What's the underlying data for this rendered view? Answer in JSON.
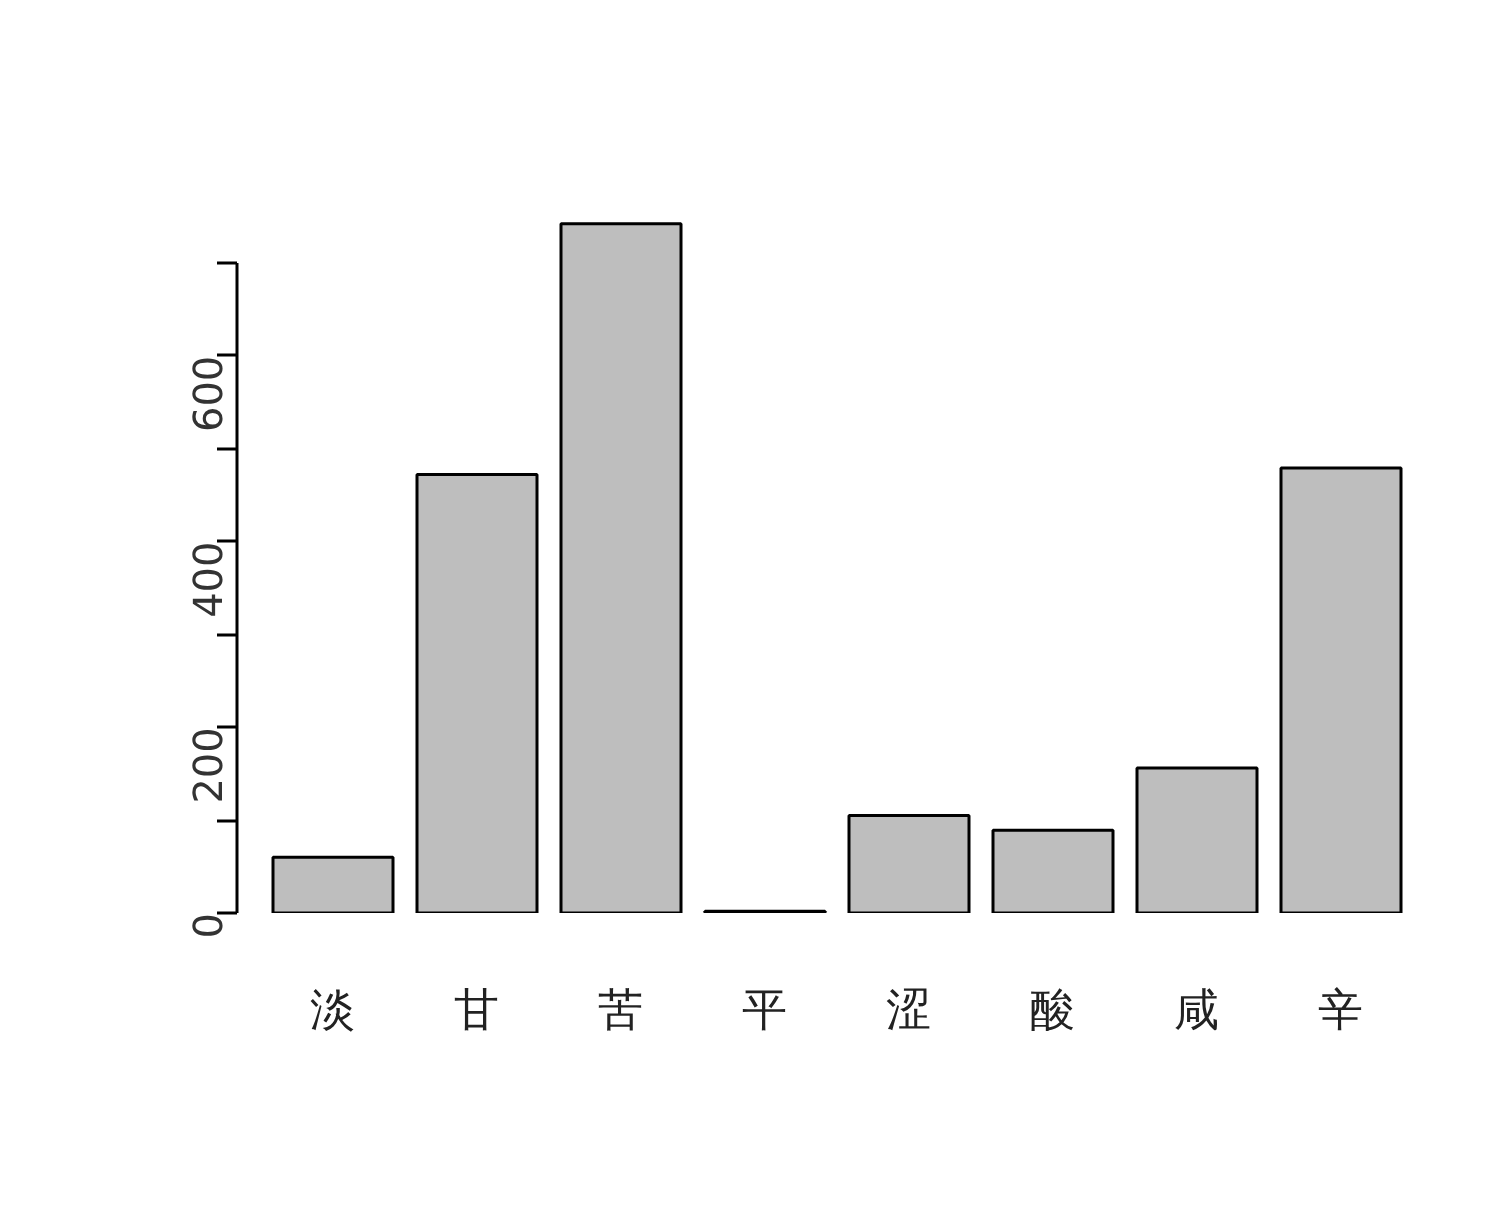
{
  "chart_data": {
    "type": "bar",
    "categories": [
      "淡",
      "甘",
      "苦",
      "平",
      "涩",
      "酸",
      "咸",
      "辛"
    ],
    "values": [
      60,
      472,
      742,
      2,
      105,
      89,
      156,
      479
    ],
    "color": "#bebebe",
    "ylim": [
      0,
      745
    ],
    "yticks": [
      0,
      {
        "value": 100,
        "label": null
      },
      200,
      {
        "value": 300,
        "label": null
      },
      400,
      {
        "value": 500,
        "label": null
      },
      600,
      {
        "value": 700,
        "label": null
      }
    ],
    "grid": false
  }
}
